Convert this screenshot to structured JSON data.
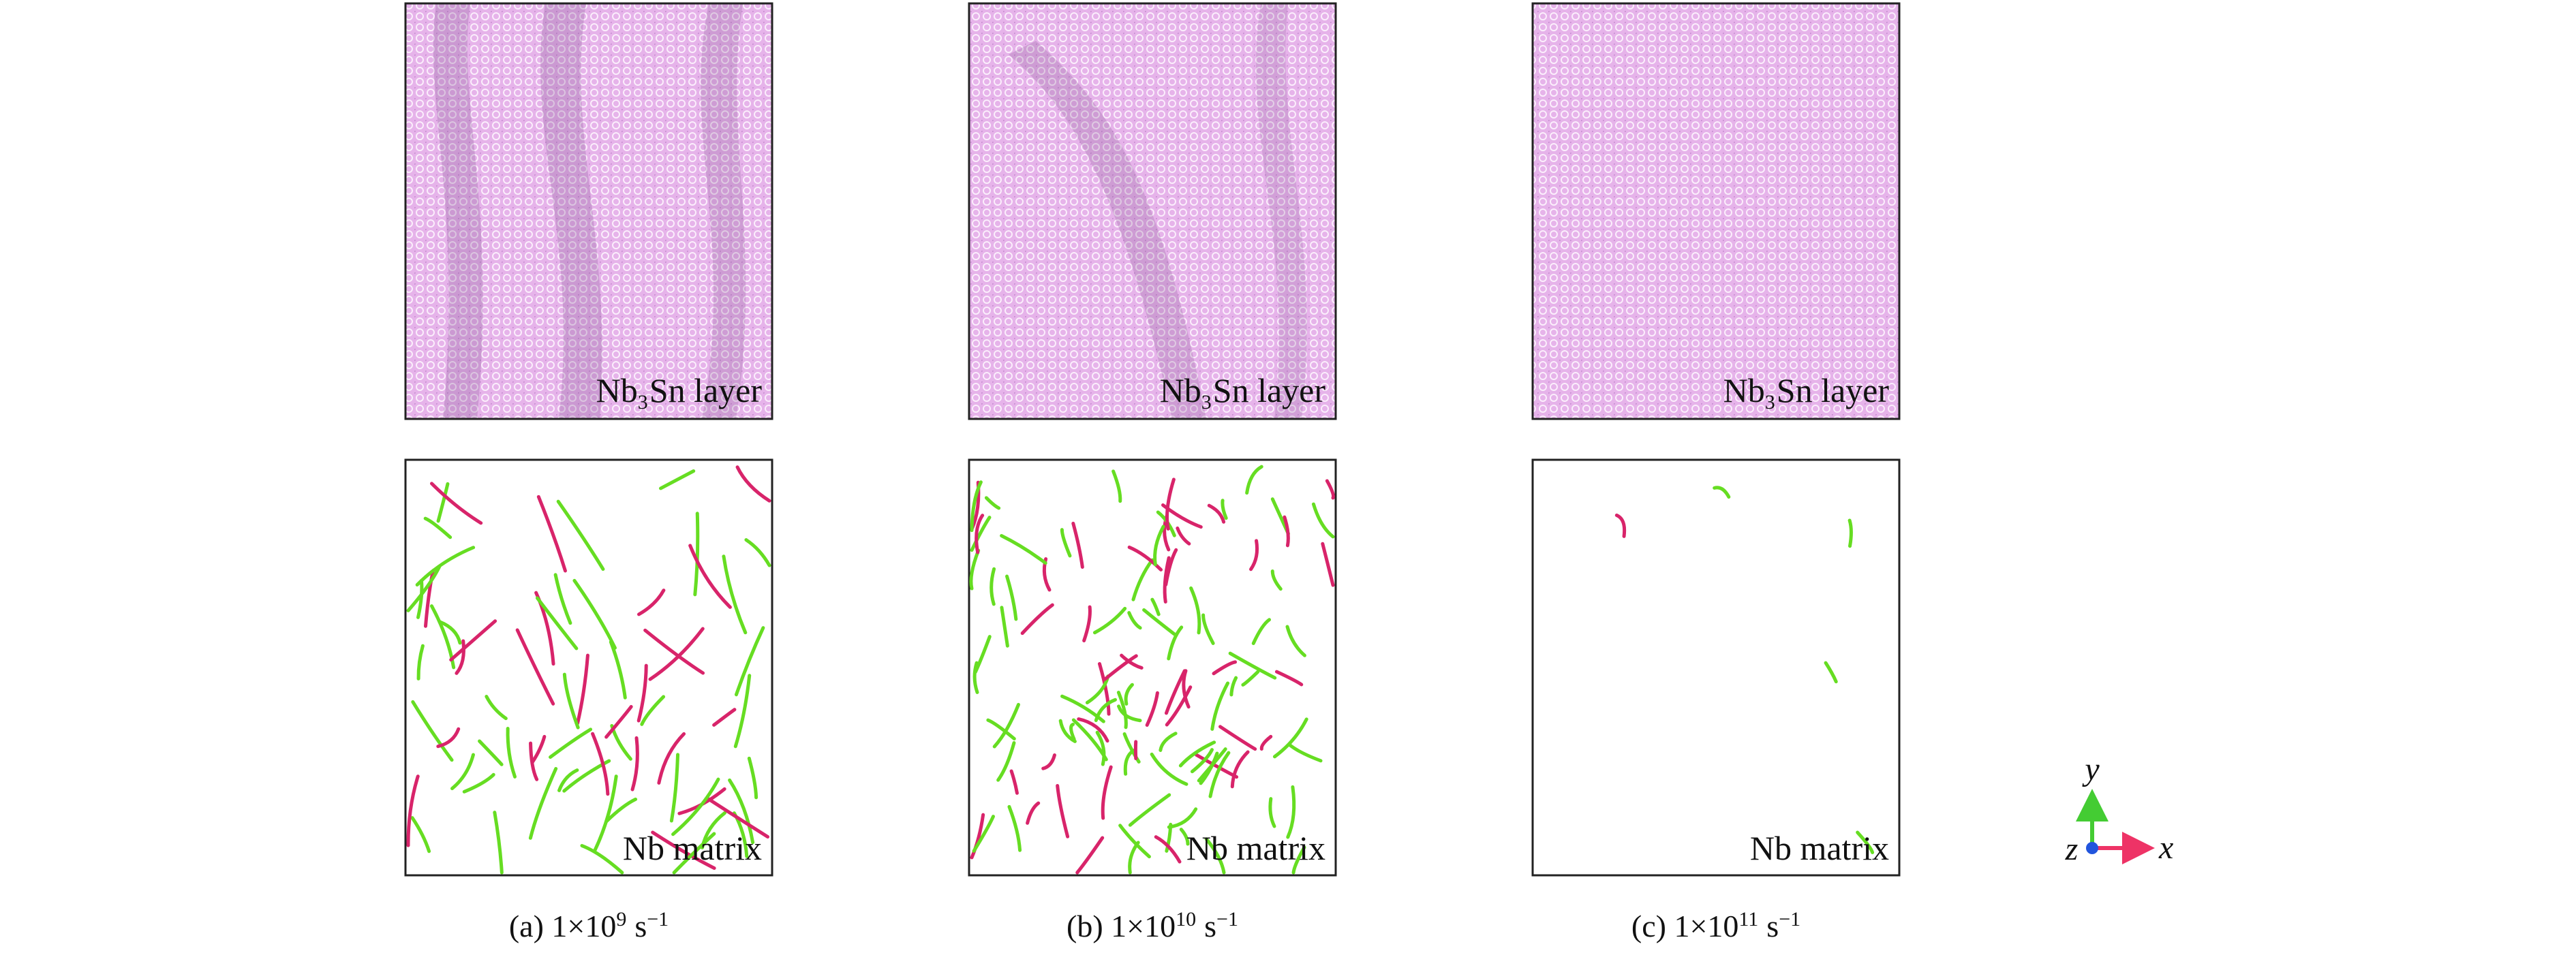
{
  "panels": [
    {
      "top_label": {
        "a": "Nb",
        "sub": "3",
        "b": "Sn layer"
      },
      "bottom_label": "Nb matrix",
      "caption": {
        "prefix": "(a) 1×10",
        "exp": "9",
        "unit": "s",
        "unit_exp": "−1"
      }
    },
    {
      "top_label": {
        "a": "Nb",
        "sub": "3",
        "b": "Sn layer"
      },
      "bottom_label": "Nb matrix",
      "caption": {
        "prefix": "(b) 1×10",
        "exp": "10",
        "unit": "s",
        "unit_exp": "−1"
      }
    },
    {
      "top_label": {
        "a": "Nb",
        "sub": "3",
        "b": "Sn layer"
      },
      "bottom_label": "Nb matrix",
      "caption": {
        "prefix": "(c) 1×10",
        "exp": "11",
        "unit": "s",
        "unit_exp": "−1"
      }
    }
  ],
  "axes": {
    "y": "y",
    "x": "x",
    "z": "z"
  }
}
